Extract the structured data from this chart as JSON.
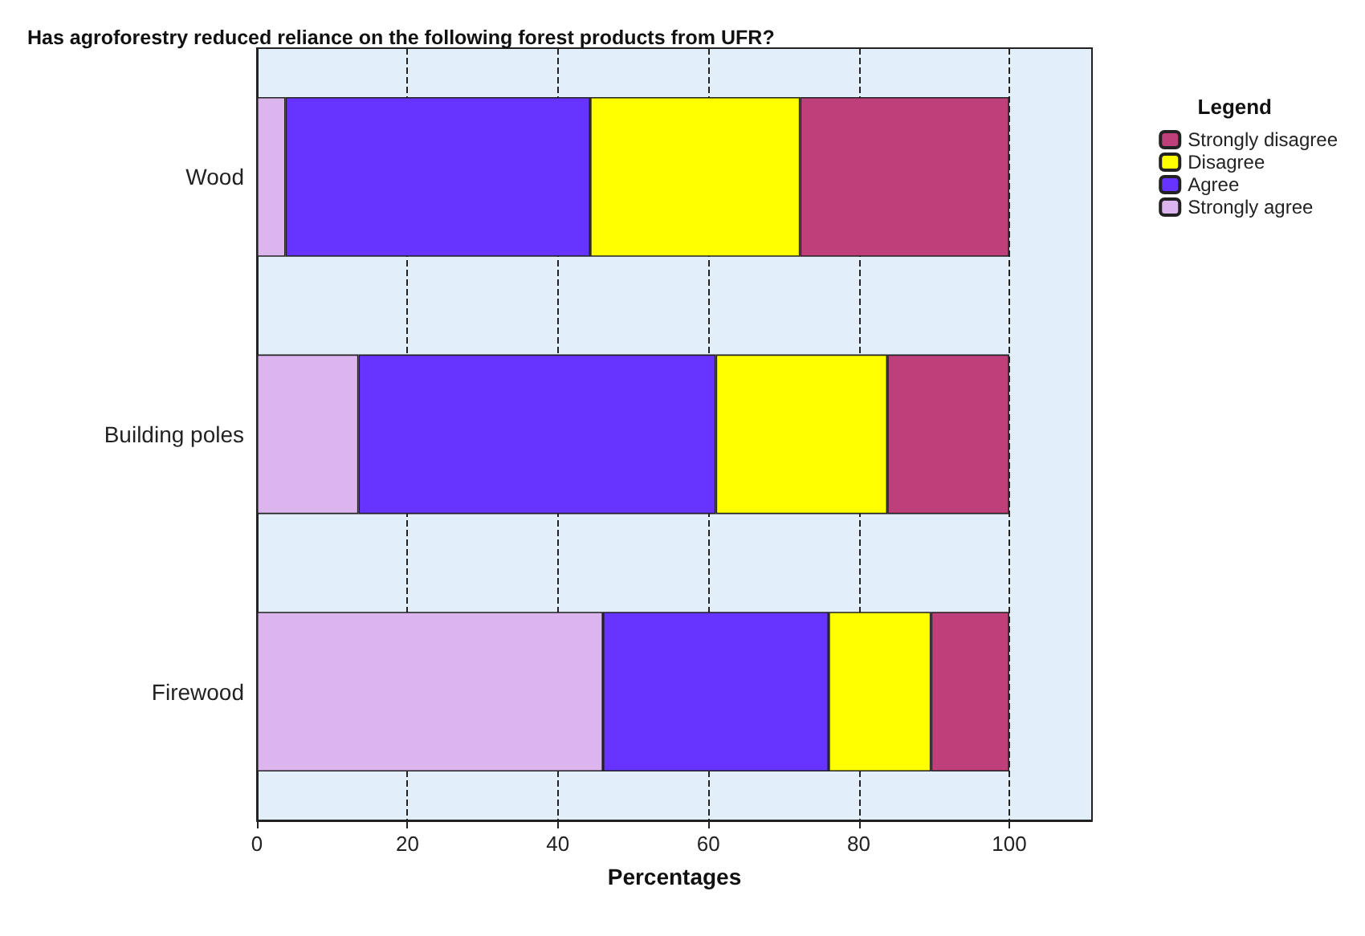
{
  "chart_data": {
    "type": "bar",
    "orientation": "horizontal",
    "stacked": true,
    "title": "Has agroforestry reduced reliance on the following forest products from UFR?",
    "xlabel": "Percentages",
    "legend_title": "Legend",
    "legend": "top right",
    "grid": "x",
    "categories": [
      "Wood",
      "Building poles",
      "Firewood"
    ],
    "series": [
      {
        "name": "Strongly agree",
        "color": "#dcb4ee",
        "values": [
          3.8,
          13.5,
          46.0
        ]
      },
      {
        "name": "Agree",
        "color": "#6633ff",
        "values": [
          40.5,
          47.5,
          30.0
        ]
      },
      {
        "name": "Disagree",
        "color": "#ffff00",
        "values": [
          27.9,
          22.8,
          13.6
        ]
      },
      {
        "name": "Strongly disagree",
        "color": "#bf3f7a",
        "values": [
          27.8,
          16.2,
          10.4
        ]
      }
    ],
    "xlim": [
      0,
      111
    ],
    "xticks": [
      0,
      20,
      40,
      60,
      80,
      100
    ]
  }
}
